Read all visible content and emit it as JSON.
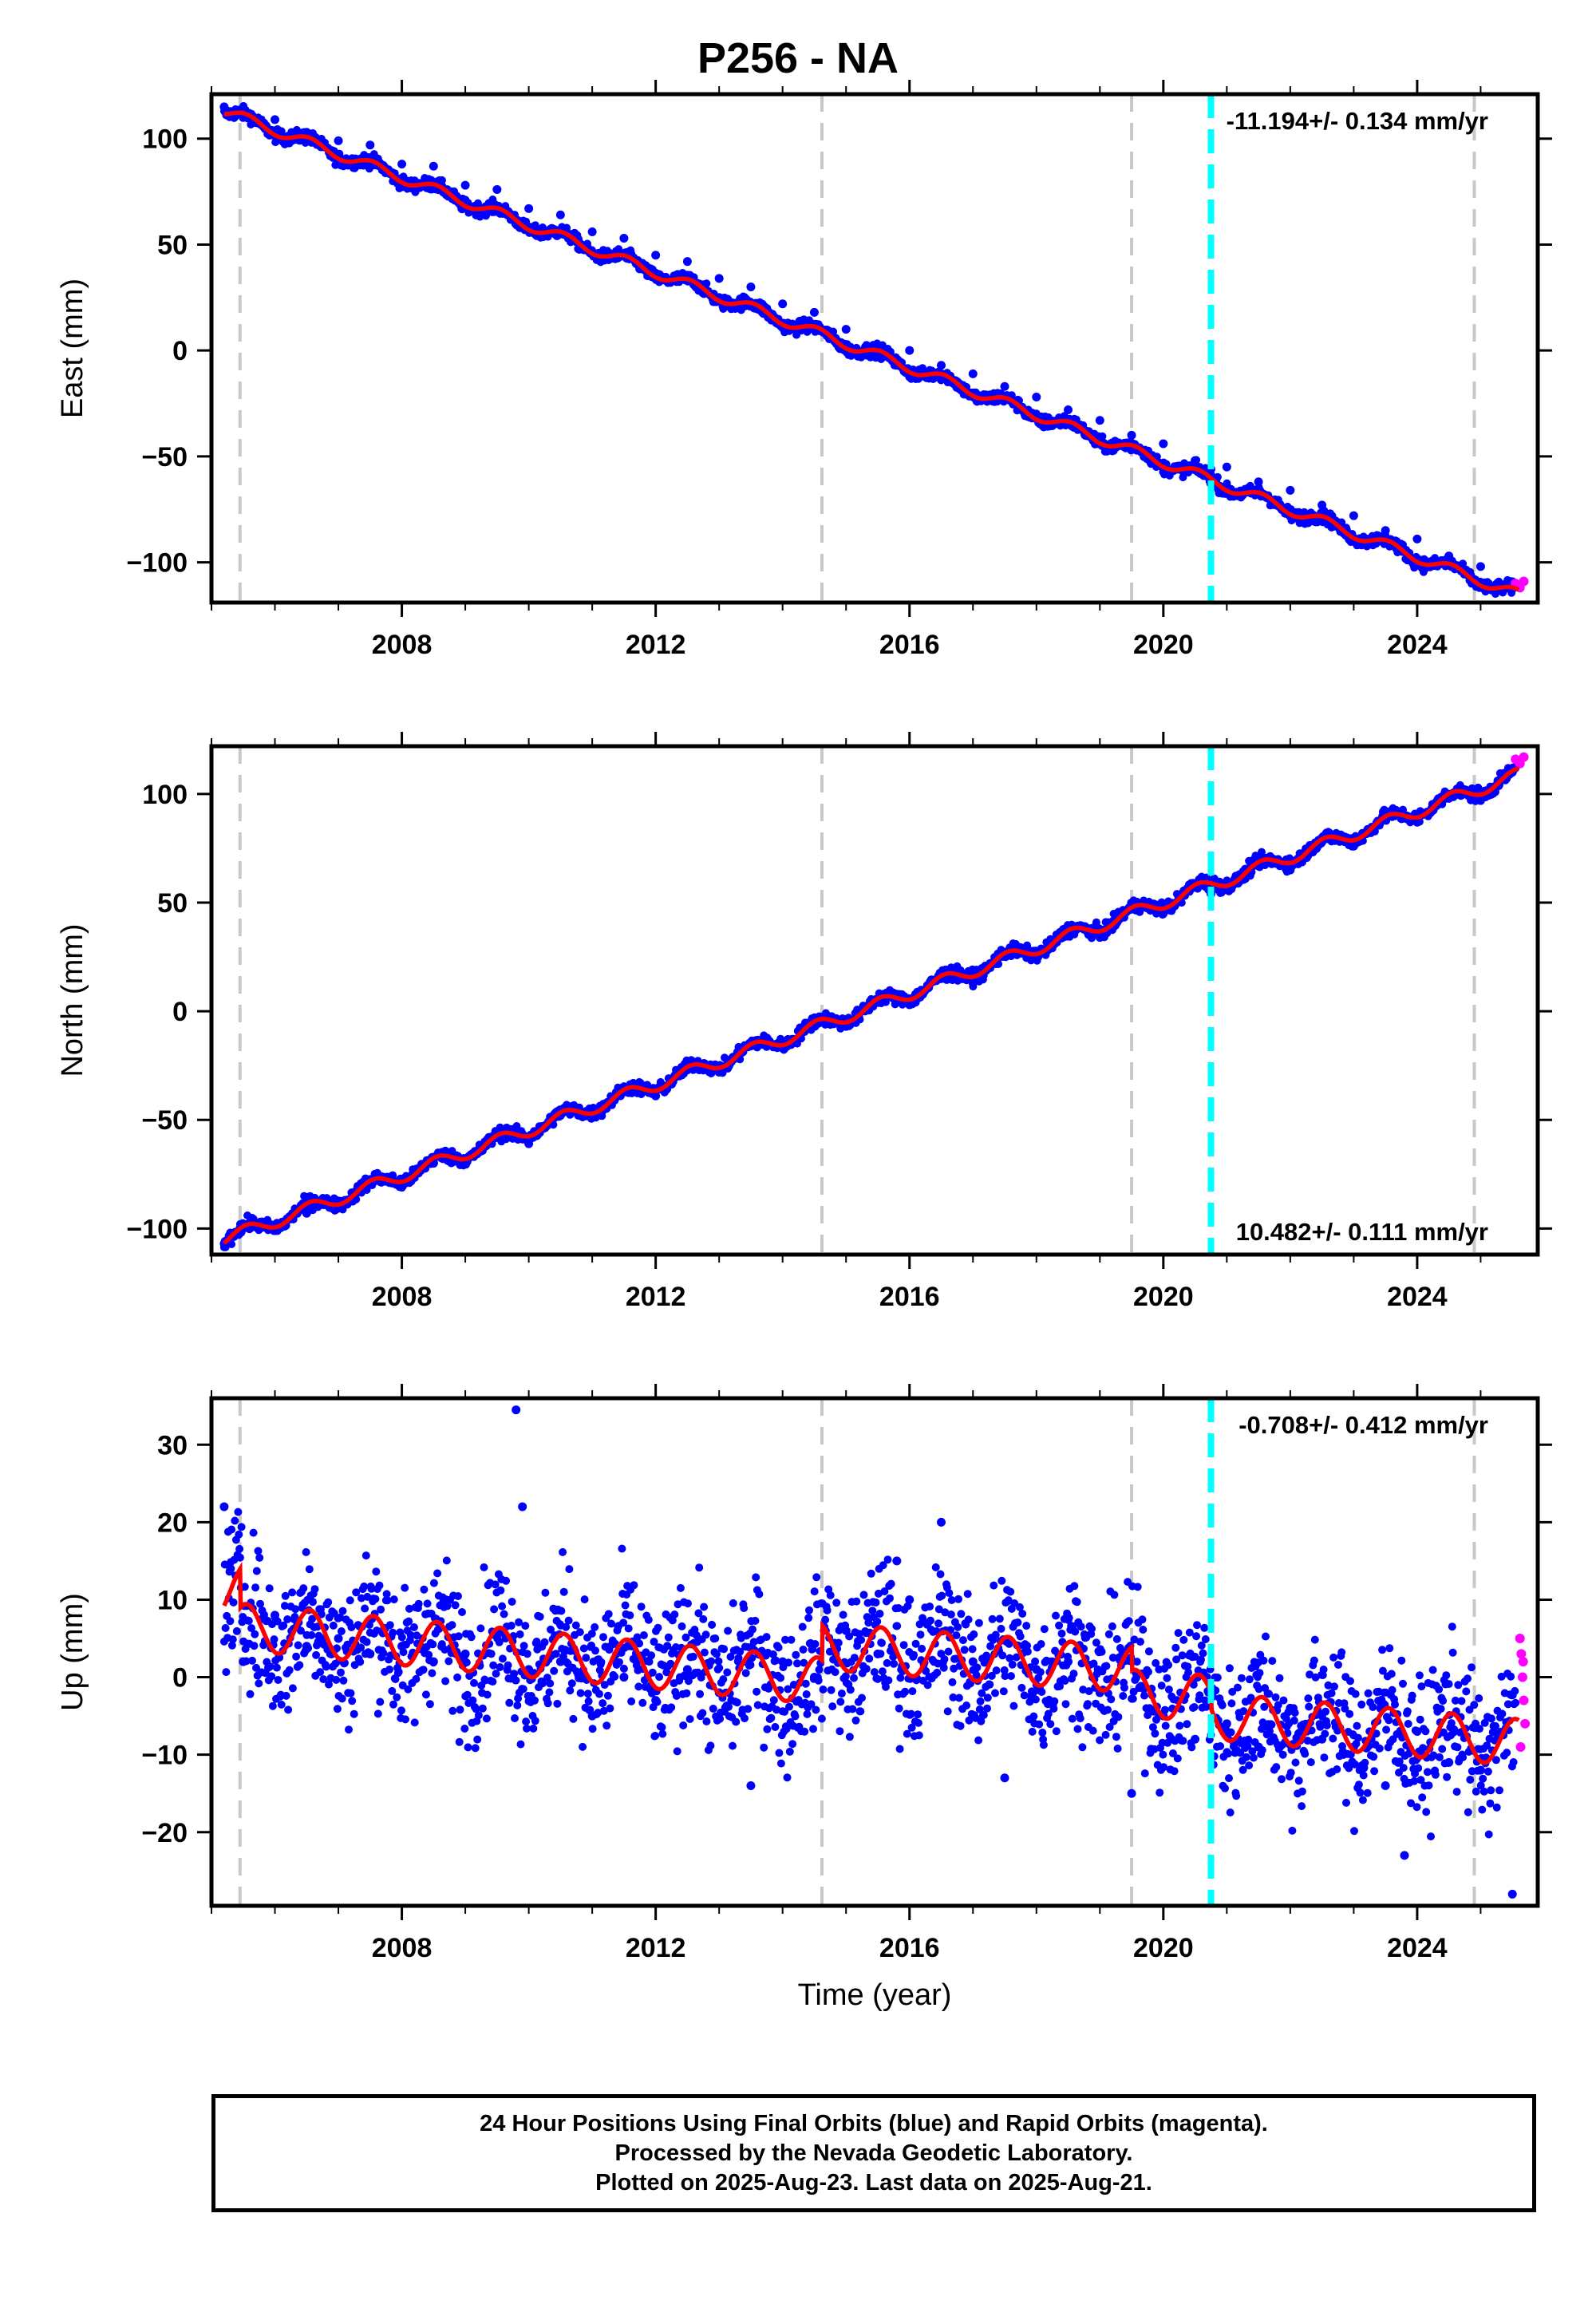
{
  "title": "P256 - NA",
  "chart_data": [
    {
      "type": "scatter",
      "ylabel": "East (mm)",
      "xlabel": "",
      "xlim": [
        2005.0,
        2025.9
      ],
      "ylim": [
        -119,
        121
      ],
      "xticks": [
        2008,
        2012,
        2016,
        2020,
        2024
      ],
      "xtick_labels": [
        "2008",
        "2012",
        "2016",
        "2020",
        "2024"
      ],
      "yticks": [
        100,
        50,
        0,
        -50,
        -100
      ],
      "ytick_labels": [
        "100",
        "50",
        "0",
        "−50",
        "−100"
      ],
      "rate_label": "-11.194+/- 0.134 mm/yr",
      "rate_position": "top-right",
      "steps_gray": [
        2005.45,
        2014.62,
        2019.5,
        2024.9
      ],
      "steps_cyan": [
        2020.75
      ],
      "final_points": [
        [
          2005.2,
          115
        ],
        [
          2005.5,
          110
        ],
        [
          2006,
          109
        ],
        [
          2006.5,
          103
        ],
        [
          2007,
          99
        ],
        [
          2007.5,
          97
        ],
        [
          2008,
          88
        ],
        [
          2008.5,
          87
        ],
        [
          2009,
          78
        ],
        [
          2009.5,
          76
        ],
        [
          2010,
          67
        ],
        [
          2010.5,
          64
        ],
        [
          2011,
          56
        ],
        [
          2011.5,
          53
        ],
        [
          2012,
          45
        ],
        [
          2012.5,
          42
        ],
        [
          2013,
          34
        ],
        [
          2013.5,
          30
        ],
        [
          2014,
          22
        ],
        [
          2014.5,
          18
        ],
        [
          2014.7,
          7
        ],
        [
          2015,
          10
        ],
        [
          2015.5,
          2
        ],
        [
          2016,
          0
        ],
        [
          2016.5,
          -7
        ],
        [
          2017,
          -11
        ],
        [
          2017.5,
          -17
        ],
        [
          2018,
          -22
        ],
        [
          2018.5,
          -28
        ],
        [
          2019,
          -33
        ],
        [
          2019.5,
          -40
        ],
        [
          2020,
          -44
        ],
        [
          2020.5,
          -52
        ],
        [
          2020.75,
          -56
        ],
        [
          2021,
          -55
        ],
        [
          2021.5,
          -62
        ],
        [
          2022,
          -66
        ],
        [
          2022.5,
          -73
        ],
        [
          2023,
          -78
        ],
        [
          2023.5,
          -85
        ],
        [
          2024,
          -89
        ],
        [
          2024.5,
          -97
        ],
        [
          2025,
          -102
        ],
        [
          2025.5,
          -111
        ]
      ],
      "rapid_points": [
        [
          2025.55,
          -110
        ],
        [
          2025.62,
          -112
        ],
        [
          2025.68,
          -109
        ]
      ],
      "model": {
        "t0": 2005.2,
        "y0": 113,
        "rate": -11.194,
        "annual_amp": 2.5,
        "noise": 1.5
      }
    },
    {
      "type": "scatter",
      "ylabel": "North (mm)",
      "xlabel": "",
      "xlim": [
        2005.0,
        2025.9
      ],
      "ylim": [
        -112,
        122
      ],
      "xticks": [
        2008,
        2012,
        2016,
        2020,
        2024
      ],
      "xtick_labels": [
        "2008",
        "2012",
        "2016",
        "2020",
        "2024"
      ],
      "yticks": [
        100,
        50,
        0,
        -50,
        -100
      ],
      "ytick_labels": [
        "100",
        "50",
        "0",
        "−50",
        "−100"
      ],
      "rate_label": "10.482+/- 0.111 mm/yr",
      "rate_position": "bottom-right",
      "steps_gray": [
        2005.45,
        2014.62,
        2019.5,
        2024.9
      ],
      "steps_cyan": [
        2020.75
      ],
      "final_points": [
        [
          2005.2,
          -107
        ],
        [
          2005.5,
          -100
        ],
        [
          2006,
          -101
        ],
        [
          2006.5,
          -93
        ],
        [
          2007,
          -90
        ],
        [
          2007.5,
          -79
        ],
        [
          2008,
          -81
        ],
        [
          2008.5,
          -70
        ],
        [
          2009,
          -70
        ],
        [
          2009.5,
          -58
        ],
        [
          2010,
          -61
        ],
        [
          2010.5,
          -48
        ],
        [
          2011,
          -49
        ],
        [
          2011.5,
          -37
        ],
        [
          2012,
          -39
        ],
        [
          2012.5,
          -27
        ],
        [
          2013,
          -28
        ],
        [
          2013.5,
          -15
        ],
        [
          2014,
          -17
        ],
        [
          2014.5,
          -5
        ],
        [
          2015,
          -7
        ],
        [
          2015.5,
          4
        ],
        [
          2016,
          3
        ],
        [
          2016.5,
          15
        ],
        [
          2017,
          13
        ],
        [
          2017.5,
          27
        ],
        [
          2018,
          24
        ],
        [
          2018.5,
          37
        ],
        [
          2019,
          34
        ],
        [
          2019.5,
          47
        ],
        [
          2020,
          45
        ],
        [
          2020.5,
          58
        ],
        [
          2020.75,
          54
        ],
        [
          2021,
          56
        ],
        [
          2021.5,
          68
        ],
        [
          2022,
          65
        ],
        [
          2022.5,
          78
        ],
        [
          2023,
          76
        ],
        [
          2023.5,
          89
        ],
        [
          2024,
          87
        ],
        [
          2024.5,
          98
        ],
        [
          2025,
          97
        ],
        [
          2025.5,
          110
        ]
      ],
      "rapid_points": [
        [
          2025.55,
          116
        ],
        [
          2025.62,
          114
        ],
        [
          2025.68,
          117
        ]
      ],
      "model": {
        "t0": 2005.2,
        "y0": -105,
        "rate": 10.482,
        "annual_amp": 3.0,
        "noise": 1.5
      }
    },
    {
      "type": "scatter",
      "ylabel": "Up (mm)",
      "xlabel": "Time (year)",
      "xlim": [
        2005.0,
        2025.9
      ],
      "ylim": [
        -29.5,
        36
      ],
      "xticks": [
        2008,
        2012,
        2016,
        2020,
        2024
      ],
      "xtick_labels": [
        "2008",
        "2012",
        "2016",
        "2020",
        "2024"
      ],
      "yticks": [
        30,
        20,
        10,
        0,
        -10,
        -20
      ],
      "ytick_labels": [
        "30",
        "20",
        "10",
        "0",
        "−10",
        "−20"
      ],
      "rate_label": "-0.708+/- 0.412 mm/yr",
      "rate_position": "top-right",
      "steps_gray": [
        2005.45,
        2014.62,
        2019.5,
        2024.9
      ],
      "steps_cyan": [
        2020.75
      ],
      "final_points": [
        [
          2005.2,
          22
        ],
        [
          2005.3,
          14
        ],
        [
          2005.5,
          2
        ],
        [
          2006,
          8
        ],
        [
          2006.5,
          4
        ],
        [
          2007,
          5
        ],
        [
          2007.5,
          3
        ],
        [
          2008,
          4
        ],
        [
          2008.5,
          2
        ],
        [
          2009,
          3
        ],
        [
          2009.8,
          34.5
        ],
        [
          2009.9,
          22
        ],
        [
          2010,
          1
        ],
        [
          2010.5,
          2
        ],
        [
          2011,
          -5
        ],
        [
          2011.5,
          0
        ],
        [
          2012,
          -3
        ],
        [
          2012.5,
          1
        ],
        [
          2013,
          -2
        ],
        [
          2013.5,
          -14
        ],
        [
          2014,
          2
        ],
        [
          2014.5,
          0
        ],
        [
          2015,
          6
        ],
        [
          2015.5,
          3
        ],
        [
          2015.8,
          15
        ],
        [
          2016,
          10
        ],
        [
          2016.5,
          20
        ],
        [
          2017,
          2
        ],
        [
          2017.5,
          -13
        ],
        [
          2018,
          1
        ],
        [
          2018.5,
          2
        ],
        [
          2019,
          -2
        ],
        [
          2019.5,
          -15
        ],
        [
          2020,
          -5
        ],
        [
          2020.5,
          -8
        ],
        [
          2021,
          -6
        ],
        [
          2021.5,
          -9
        ],
        [
          2022,
          -4
        ],
        [
          2022.5,
          -8
        ],
        [
          2023,
          -9
        ],
        [
          2023.5,
          -14
        ],
        [
          2023.8,
          -23
        ],
        [
          2024,
          -7
        ],
        [
          2024.5,
          -11
        ],
        [
          2025,
          -12
        ],
        [
          2025.5,
          -28
        ]
      ],
      "rapid_points": [
        [
          2025.62,
          5
        ],
        [
          2025.64,
          3
        ],
        [
          2025.66,
          0
        ],
        [
          2025.68,
          -3
        ],
        [
          2025.7,
          -6
        ],
        [
          2025.63,
          -9
        ],
        [
          2025.67,
          2
        ]
      ],
      "model": {
        "annual_amp": 3.0,
        "noise": 4.5,
        "segments": [
          [
            2005.2,
            2005.45,
            11,
            11.5
          ],
          [
            2005.45,
            2014.62,
            6.5,
            -0.5
          ],
          [
            2014.62,
            2019.5,
            4,
            1
          ],
          [
            2019.5,
            2020.75,
            -2,
            -2.8
          ],
          [
            2020.75,
            2025.7,
            -5,
            -8.5
          ]
        ]
      }
    }
  ],
  "footer": {
    "line1": "24 Hour Positions Using Final Orbits (blue) and Rapid Orbits (magenta).",
    "line2": "Processed by the Nevada Geodetic Laboratory.",
    "line3": "Plotted on 2025-Aug-23. Last data on 2025-Aug-21."
  },
  "colors": {
    "final": "#0000ff",
    "rapid": "#ff00ff",
    "model": "#ff0000",
    "step_gray": "#c8c8c8",
    "step_cyan": "#00ffff",
    "axis": "#000000"
  }
}
